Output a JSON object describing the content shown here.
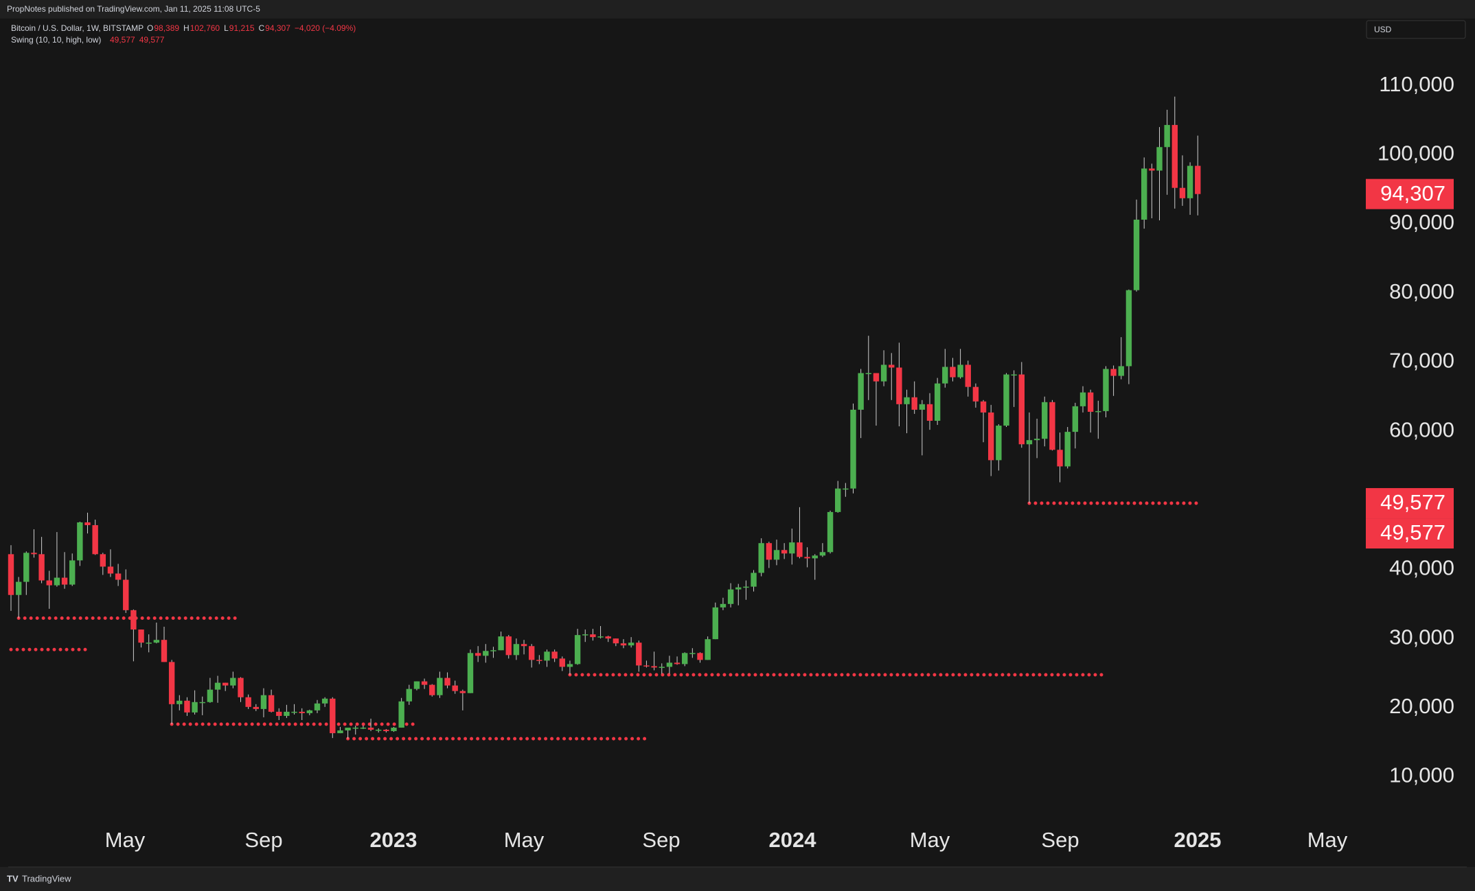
{
  "header": {
    "publisher": "PropNotes published on TradingView.com, Jan 11, 2025 11:08 UTC-5"
  },
  "chart_data": {
    "type": "candlestick",
    "title": "Bitcoin / U.S. Dollar, 1W, BITSTAMP",
    "legend_ohlc": [
      {
        "key": "O",
        "label": "98,389"
      },
      {
        "key": "H",
        "label": "102,760"
      },
      {
        "key": "L",
        "label": "91,215"
      },
      {
        "key": "C",
        "label": "94,307"
      }
    ],
    "change_label": "−4,020 (−4.09%)",
    "indicator": {
      "name": "Swing (10, 10, high, low)",
      "values": [
        49577,
        49577
      ],
      "value_labels": [
        "49,577",
        "49,577"
      ],
      "color": "#f23645"
    },
    "currency": "USD",
    "up_color": "#4caf50",
    "down_color": "#f23645",
    "last_price": {
      "value": 94307,
      "label": "94,307"
    },
    "candles": [
      [
        42200,
        43500,
        34000,
        36300
      ],
      [
        36300,
        38900,
        32950,
        38200
      ],
      [
        38200,
        42600,
        36300,
        42400
      ],
      [
        42400,
        45800,
        41700,
        42200
      ],
      [
        42200,
        44700,
        38000,
        38400
      ],
      [
        38400,
        39800,
        34300,
        37700
      ],
      [
        37700,
        45400,
        37500,
        38800
      ],
      [
        38800,
        42500,
        37200,
        37800
      ],
      [
        37800,
        42300,
        37600,
        41300
      ],
      [
        41300,
        46900,
        40500,
        46800
      ],
      [
        46800,
        48200,
        45200,
        46400
      ],
      [
        46400,
        47200,
        42100,
        42200
      ],
      [
        42200,
        42400,
        39200,
        40400
      ],
      [
        40400,
        42900,
        38900,
        39400
      ],
      [
        39400,
        40800,
        37600,
        38500
      ],
      [
        38500,
        40000,
        33700,
        34100
      ],
      [
        34100,
        34200,
        26700,
        31300
      ],
      [
        31300,
        31300,
        28700,
        29400
      ],
      [
        29400,
        30600,
        28000,
        29400
      ],
      [
        29400,
        32300,
        29300,
        29800
      ],
      [
        29800,
        31700,
        26600,
        26600
      ],
      [
        26600,
        26900,
        17600,
        20500
      ],
      [
        20500,
        21800,
        19600,
        21000
      ],
      [
        21000,
        21500,
        18800,
        19300
      ],
      [
        19300,
        22500,
        19000,
        20800
      ],
      [
        20800,
        21600,
        18900,
        20800
      ],
      [
        20800,
        24300,
        20700,
        22600
      ],
      [
        22600,
        24600,
        20700,
        23600
      ],
      [
        23600,
        23600,
        22400,
        23200
      ],
      [
        23200,
        25200,
        22800,
        24300
      ],
      [
        24300,
        24400,
        20800,
        21500
      ],
      [
        21500,
        21900,
        19800,
        20100
      ],
      [
        20100,
        20500,
        19500,
        19800
      ],
      [
        19800,
        22800,
        18600,
        21800
      ],
      [
        21800,
        22600,
        19300,
        19400
      ],
      [
        19400,
        19900,
        18200,
        18800
      ],
      [
        18800,
        20400,
        18500,
        19400
      ],
      [
        19400,
        20500,
        19000,
        19400
      ],
      [
        19400,
        19900,
        18200,
        19200
      ],
      [
        19200,
        19700,
        18900,
        19600
      ],
      [
        19600,
        21100,
        19200,
        20600
      ],
      [
        20600,
        21500,
        20100,
        21300
      ],
      [
        21300,
        21500,
        15600,
        16300
      ],
      [
        16300,
        17200,
        16300,
        16700
      ],
      [
        16700,
        16900,
        15500,
        17100
      ],
      [
        17100,
        17400,
        16100,
        17100
      ],
      [
        17100,
        17400,
        16900,
        17100
      ],
      [
        17100,
        18400,
        16600,
        16800
      ],
      [
        16800,
        17000,
        16400,
        16800
      ],
      [
        16800,
        16900,
        16400,
        16600
      ],
      [
        16600,
        17200,
        16500,
        17100
      ],
      [
        17100,
        21400,
        17100,
        20900
      ],
      [
        20900,
        23300,
        20400,
        22700
      ],
      [
        22700,
        23800,
        22500,
        23800
      ],
      [
        23800,
        24200,
        22700,
        23300
      ],
      [
        23300,
        23400,
        21600,
        21800
      ],
      [
        21800,
        25200,
        21400,
        24300
      ],
      [
        24300,
        25100,
        22800,
        23200
      ],
      [
        23200,
        23900,
        22000,
        22400
      ],
      [
        22400,
        22600,
        19600,
        22100
      ],
      [
        22100,
        28400,
        22100,
        27900
      ],
      [
        27900,
        28900,
        26600,
        27500
      ],
      [
        27500,
        29200,
        26500,
        28200
      ],
      [
        28200,
        28800,
        27200,
        28300
      ],
      [
        28300,
        31000,
        28300,
        30300
      ],
      [
        30300,
        30500,
        27100,
        27600
      ],
      [
        27600,
        30000,
        26900,
        29200
      ],
      [
        29200,
        29800,
        27700,
        28900
      ],
      [
        28900,
        29200,
        25800,
        26900
      ],
      [
        26900,
        27600,
        26300,
        26800
      ],
      [
        26800,
        28400,
        25900,
        28100
      ],
      [
        28100,
        28400,
        26600,
        27100
      ],
      [
        27100,
        27400,
        25300,
        25900
      ],
      [
        25900,
        26800,
        24750,
        26300
      ],
      [
        26300,
        31400,
        26200,
        30500
      ],
      [
        30500,
        31300,
        29500,
        30600
      ],
      [
        30600,
        31400,
        29700,
        30200
      ],
      [
        30200,
        31800,
        30000,
        30300
      ],
      [
        30300,
        30400,
        29500,
        30000
      ],
      [
        30000,
        30000,
        28900,
        29300
      ],
      [
        29300,
        29900,
        28600,
        29000
      ],
      [
        29000,
        30200,
        28700,
        29400
      ],
      [
        29400,
        29700,
        25200,
        26100
      ],
      [
        26100,
        26800,
        25800,
        26000
      ],
      [
        26000,
        28100,
        25400,
        25800
      ],
      [
        25800,
        26400,
        24900,
        25900
      ],
      [
        25900,
        27500,
        24900,
        26500
      ],
      [
        26500,
        27400,
        26200,
        26300
      ],
      [
        26300,
        28000,
        26000,
        27900
      ],
      [
        27900,
        28600,
        27200,
        27900
      ],
      [
        27900,
        28000,
        26500,
        26900
      ],
      [
        26900,
        30300,
        26900,
        29900
      ],
      [
        29900,
        35200,
        29900,
        34500
      ],
      [
        34500,
        35900,
        34100,
        35000
      ],
      [
        35000,
        38000,
        34500,
        37100
      ],
      [
        37100,
        37900,
        34800,
        37400
      ],
      [
        37400,
        38400,
        35600,
        37500
      ],
      [
        37500,
        39900,
        36800,
        39500
      ],
      [
        39500,
        44500,
        39000,
        43800
      ],
      [
        43800,
        44000,
        40200,
        41400
      ],
      [
        41400,
        44300,
        40600,
        42800
      ],
      [
        42800,
        43800,
        41500,
        42300
      ],
      [
        42300,
        45900,
        40700,
        43900
      ],
      [
        43900,
        49000,
        41600,
        41800
      ],
      [
        41800,
        43200,
        40300,
        41600
      ],
      [
        41600,
        42200,
        38500,
        42000
      ],
      [
        42000,
        43800,
        41800,
        42500
      ],
      [
        42500,
        48500,
        42300,
        48300
      ],
      [
        48300,
        52800,
        48200,
        51700
      ],
      [
        51700,
        52500,
        50500,
        51700
      ],
      [
        51700,
        64000,
        51000,
        63100
      ],
      [
        63100,
        69000,
        59000,
        68400
      ],
      [
        68400,
        73800,
        64500,
        68400
      ],
      [
        68400,
        68400,
        60800,
        67200
      ],
      [
        67200,
        71700,
        66500,
        69600
      ],
      [
        69600,
        71300,
        64500,
        69200
      ],
      [
        69200,
        72800,
        60700,
        63900
      ],
      [
        63900,
        66000,
        59700,
        64900
      ],
      [
        64900,
        67200,
        62500,
        63100
      ],
      [
        63100,
        64500,
        56500,
        63900
      ],
      [
        63900,
        65500,
        60200,
        61500
      ],
      [
        61500,
        67700,
        60900,
        66900
      ],
      [
        66900,
        71900,
        66300,
        69300
      ],
      [
        69300,
        70600,
        67200,
        67800
      ],
      [
        67800,
        71900,
        67600,
        69600
      ],
      [
        69600,
        70200,
        65000,
        66400
      ],
      [
        66400,
        66900,
        63400,
        64300
      ],
      [
        64300,
        64500,
        58400,
        62700
      ],
      [
        62700,
        63800,
        53500,
        55800
      ],
      [
        55800,
        61000,
        54300,
        60800
      ],
      [
        60800,
        68400,
        60600,
        68200
      ],
      [
        68200,
        68800,
        63500,
        68200
      ],
      [
        68200,
        70000,
        57600,
        58100
      ],
      [
        58100,
        62700,
        49577,
        58700
      ],
      [
        58700,
        61800,
        56100,
        58900
      ],
      [
        58900,
        65000,
        57800,
        64200
      ],
      [
        64200,
        64500,
        57200,
        57300
      ],
      [
        57300,
        59800,
        52600,
        54900
      ],
      [
        54900,
        60600,
        54600,
        59900
      ],
      [
        59900,
        64100,
        57500,
        63600
      ],
      [
        63600,
        66500,
        62700,
        65600
      ],
      [
        65600,
        66000,
        59800,
        62800
      ],
      [
        62800,
        64400,
        58900,
        62900
      ],
      [
        62900,
        69400,
        62000,
        69000
      ],
      [
        69000,
        69500,
        65100,
        68000
      ],
      [
        68000,
        73600,
        67500,
        69400
      ],
      [
        69400,
        80500,
        66800,
        80400
      ],
      [
        80400,
        93500,
        80200,
        90600
      ],
      [
        90600,
        99600,
        89300,
        98000
      ],
      [
        98000,
        98700,
        90800,
        97700
      ],
      [
        97700,
        104000,
        90500,
        101100
      ],
      [
        101100,
        106500,
        94200,
        104300
      ],
      [
        104300,
        108400,
        92200,
        95200
      ],
      [
        95200,
        99900,
        92600,
        93700
      ],
      [
        93700,
        98900,
        91300,
        98389
      ],
      [
        98389,
        102760,
        91215,
        94307
      ]
    ],
    "swing_levels": [
      {
        "value": 32950,
        "from": 1,
        "to": 30
      },
      {
        "value": 28400,
        "from": 0,
        "to": 10
      },
      {
        "value": 17600,
        "from": 21,
        "to": 53
      },
      {
        "value": 15500,
        "from": 44,
        "to": 83
      },
      {
        "value": 24750,
        "from": 73,
        "to": 143
      },
      {
        "value": 49577,
        "from": 133,
        "to": 155
      }
    ],
    "ylim": [
      3200,
      119700
    ],
    "yticks": [
      {
        "value": 10000,
        "label": "10,000"
      },
      {
        "value": 20000,
        "label": "20,000"
      },
      {
        "value": 30000,
        "label": "30,000"
      },
      {
        "value": 40000,
        "label": "40,000"
      },
      {
        "value": 60000,
        "label": "60,000"
      },
      {
        "value": 70000,
        "label": "70,000"
      },
      {
        "value": 80000,
        "label": "80,000"
      },
      {
        "value": 90000,
        "label": "90,000"
      },
      {
        "value": 100000,
        "label": "100,000"
      },
      {
        "value": 110000,
        "label": "110,000"
      }
    ],
    "x_labels": [
      "May",
      "Sep",
      "2023",
      "May",
      "Sep",
      "2024",
      "May",
      "Sep",
      "2025",
      "May"
    ]
  },
  "footer": {
    "brand": "TradingView"
  }
}
